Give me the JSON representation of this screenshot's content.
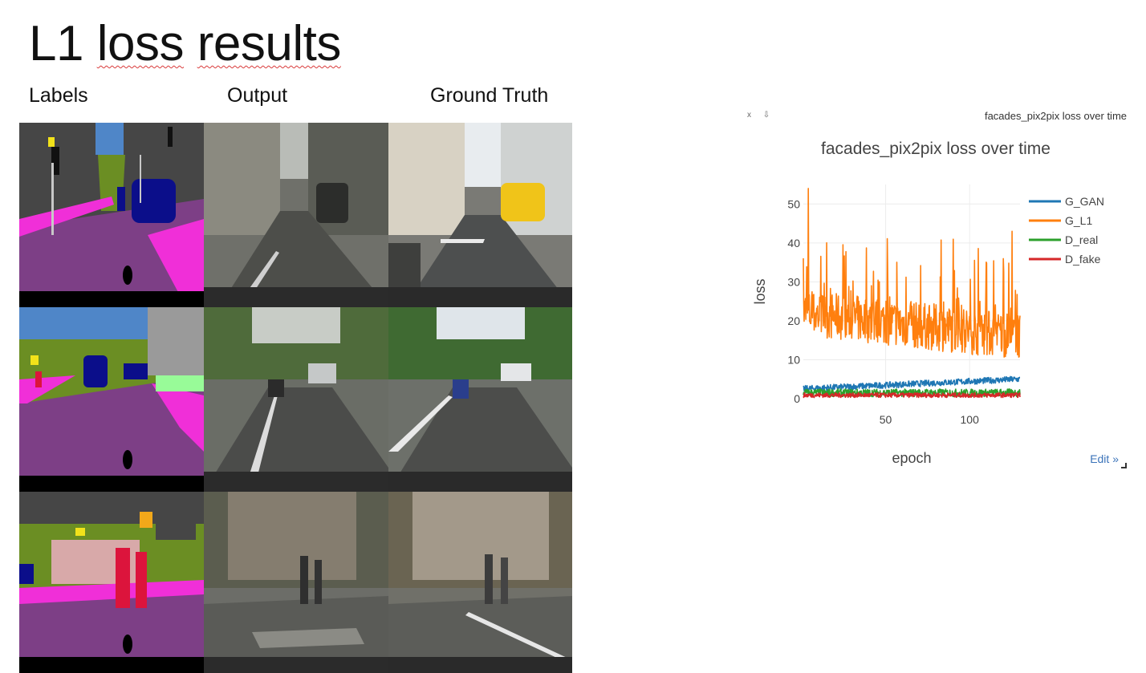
{
  "slide": {
    "title_word1": "L1",
    "title_word2": "loss",
    "title_word3": "results"
  },
  "columns": {
    "labels": "Labels",
    "output": "Output",
    "ground_truth": "Ground Truth"
  },
  "chart_window": {
    "modebar": "x ⇩",
    "tab_title": "facades_pix2pix loss over time",
    "edit_link": "Edit »"
  },
  "chart_data": {
    "type": "line",
    "title": "facades_pix2pix loss over time",
    "xlabel": "epoch",
    "ylabel": "loss",
    "xlim": [
      1,
      130
    ],
    "ylim": [
      0,
      55
    ],
    "xticks": [
      50,
      100
    ],
    "yticks": [
      0,
      10,
      20,
      30,
      40,
      50
    ],
    "grid": true,
    "legend_position": "top-right",
    "series": [
      {
        "name": "G_GAN",
        "color": "#1f77b4",
        "typical_range": [
          2,
          6
        ]
      },
      {
        "name": "G_L1",
        "color": "#ff7f0e",
        "typical_range": [
          10,
          40
        ],
        "max": 54
      },
      {
        "name": "D_real",
        "color": "#2ca02c",
        "typical_range": [
          0,
          3
        ]
      },
      {
        "name": "D_fake",
        "color": "#d62728",
        "typical_range": [
          0,
          2
        ]
      }
    ]
  }
}
